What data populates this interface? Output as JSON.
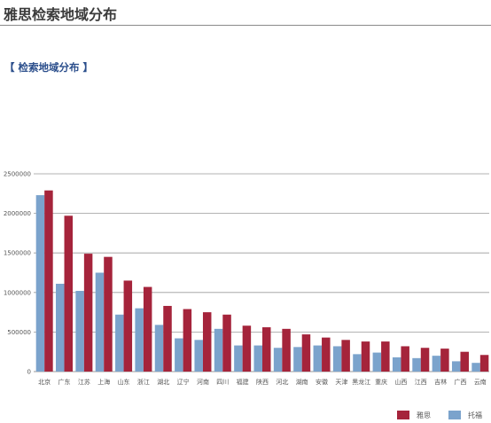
{
  "header": {
    "title": "雅思检索地域分布",
    "section": "【  检索地域分布 】"
  },
  "colors": {
    "ielts": "#a5243b",
    "toefl": "#7ba3cc"
  },
  "chart_data": {
    "type": "bar",
    "categories": [
      "北京",
      "广东",
      "江苏",
      "上海",
      "山东",
      "浙江",
      "湖北",
      "辽宁",
      "河南",
      "四川",
      "福建",
      "陕西",
      "河北",
      "湖南",
      "安徽",
      "天津",
      "黑龙江",
      "重庆",
      "山西",
      "江西",
      "吉林",
      "广西",
      "云南"
    ],
    "series": [
      {
        "name": "托福",
        "values": [
          2230000,
          1110000,
          1020000,
          1250000,
          720000,
          800000,
          590000,
          420000,
          400000,
          540000,
          330000,
          330000,
          300000,
          310000,
          330000,
          320000,
          220000,
          240000,
          180000,
          170000,
          200000,
          130000,
          110000
        ]
      },
      {
        "name": "雅思",
        "values": [
          2290000,
          1970000,
          1490000,
          1450000,
          1150000,
          1070000,
          830000,
          790000,
          750000,
          720000,
          580000,
          560000,
          540000,
          470000,
          430000,
          400000,
          380000,
          380000,
          320000,
          300000,
          290000,
          250000,
          210000
        ]
      }
    ],
    "ylim": [
      0,
      2500000
    ],
    "yticks": [
      "0",
      "500000",
      "1000000",
      "1500000",
      "2000000",
      "2500000"
    ],
    "grid": true,
    "legend": {
      "position": "bottom-right",
      "items": [
        {
          "label": "雅思",
          "series": "雅思"
        },
        {
          "label": "托福",
          "series": "托福"
        }
      ]
    }
  }
}
